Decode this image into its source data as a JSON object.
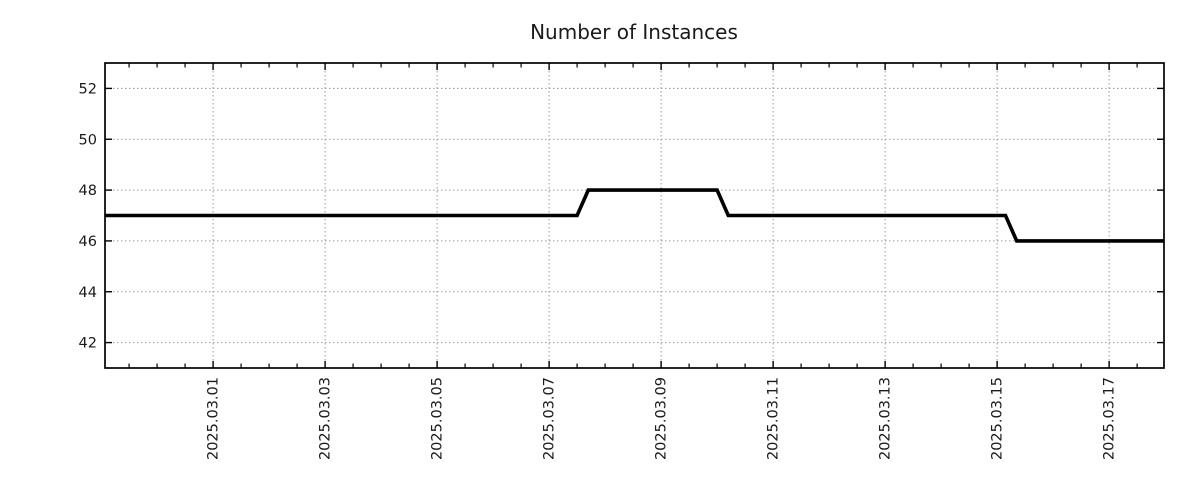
{
  "page": {
    "background_color": "#ffffff"
  },
  "chart_data": {
    "type": "line",
    "subtype": "step",
    "title": "Number of Instances",
    "xlabel": "",
    "ylabel": "",
    "grid": true,
    "legend": false,
    "line_color": "#000000",
    "line_width": 3.6,
    "grid_color": "#9a9a9a",
    "axis_color": "#000000",
    "text_color": "#1a1a1a",
    "ylim": [
      41,
      53
    ],
    "y_ticks": [
      42,
      44,
      46,
      48,
      50,
      52
    ],
    "x_unit": "day of March 2025",
    "xlim": [
      -0.93,
      17.98
    ],
    "x_ticks": [
      {
        "day": 1,
        "label": "2025.03.01"
      },
      {
        "day": 3,
        "label": "2025.03.03"
      },
      {
        "day": 5,
        "label": "2025.03.05"
      },
      {
        "day": 7,
        "label": "2025.03.07"
      },
      {
        "day": 9,
        "label": "2025.03.09"
      },
      {
        "day": 11,
        "label": "2025.03.11"
      },
      {
        "day": 13,
        "label": "2025.03.13"
      },
      {
        "day": 15,
        "label": "2025.03.15"
      },
      {
        "day": 17,
        "label": "2025.03.17"
      }
    ],
    "x_minor_tick_step": 0.5,
    "series": [
      {
        "name": "Number of Instances",
        "points": [
          [
            -0.93,
            47
          ],
          [
            7.5,
            47
          ],
          [
            7.7,
            48
          ],
          [
            10.0,
            48
          ],
          [
            10.2,
            47
          ],
          [
            15.15,
            47
          ],
          [
            15.35,
            46
          ],
          [
            17.98,
            46
          ]
        ]
      }
    ]
  }
}
